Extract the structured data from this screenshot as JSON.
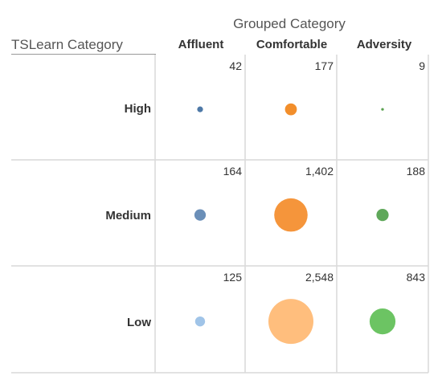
{
  "column_group_title": "Grouped Category",
  "row_group_title": "TSLearn Category",
  "columns": [
    "Affluent",
    "Comfortable",
    "Adversity"
  ],
  "rows": [
    "High",
    "Medium",
    "Low"
  ],
  "value_labels": [
    [
      "42",
      "177",
      "9"
    ],
    [
      "164",
      "1,402",
      "188"
    ],
    [
      "125",
      "2,548",
      "843"
    ]
  ],
  "colors": [
    [
      "#4e79a7",
      "#f28e2b",
      "#59a14f"
    ],
    [
      "#6b8fb8",
      "#f5953b",
      "#5fa85a"
    ],
    [
      "#a0c4e8",
      "#ffbe7d",
      "#6cc463"
    ]
  ],
  "chart_data": {
    "type": "scatter",
    "title": "",
    "x_dimension": "Grouped Category",
    "y_dimension": "TSLearn Category",
    "categories_x": [
      "Affluent",
      "Comfortable",
      "Adversity"
    ],
    "categories_y": [
      "High",
      "Medium",
      "Low"
    ],
    "values": [
      [
        42,
        177,
        9
      ],
      [
        164,
        1402,
        188
      ],
      [
        125,
        2548,
        843
      ]
    ],
    "size_encoding": "bubble area proportional to value",
    "grid": true,
    "legend": "none"
  }
}
